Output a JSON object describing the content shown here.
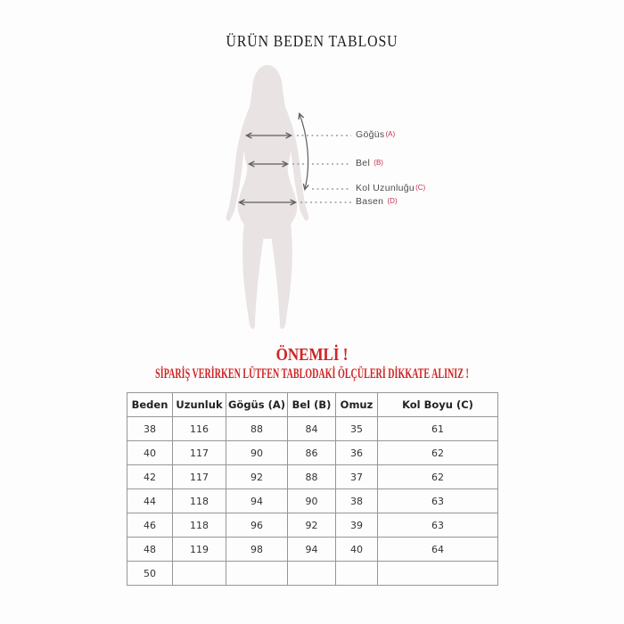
{
  "title": "ÜRÜN BEDEN TABLOSU",
  "diagram": {
    "figure": "female body silhouette with measurement arrows",
    "labels": [
      {
        "text": "Göğüs",
        "code": "(A)"
      },
      {
        "text": "Bel",
        "code": "(B)"
      },
      {
        "text": "Kol Uzunluğu",
        "code": "(C)"
      },
      {
        "text": "Basen",
        "code": "(D)"
      }
    ]
  },
  "warning": {
    "headline": "ÖNEMLİ !",
    "subline": "SİPARİŞ VERİRKEN LÜTFEN TABLODAKİ ÖLÇÜLERİ DİKKATE ALINIZ !"
  },
  "table": {
    "headers": [
      "Beden",
      "Uzunluk",
      "Gögüs (A)",
      "Bel (B)",
      "Omuz",
      "Kol Boyu (C)"
    ],
    "rows": [
      [
        "38",
        "116",
        "88",
        "84",
        "35",
        "61"
      ],
      [
        "40",
        "117",
        "90",
        "86",
        "36",
        "62"
      ],
      [
        "42",
        "117",
        "92",
        "88",
        "37",
        "62"
      ],
      [
        "44",
        "118",
        "94",
        "90",
        "38",
        "63"
      ],
      [
        "46",
        "118",
        "96",
        "92",
        "39",
        "63"
      ],
      [
        "48",
        "119",
        "98",
        "94",
        "40",
        "64"
      ],
      [
        "50",
        "",
        "",
        "",
        "",
        ""
      ]
    ]
  },
  "colors": {
    "warning_red": "#cf2424",
    "label_code_red": "#c42f52",
    "silhouette_fill": "#e9e3e3",
    "arrow_gray": "#5f5f5f",
    "dash_gray": "#8a8a8a",
    "table_border": "#969696"
  }
}
